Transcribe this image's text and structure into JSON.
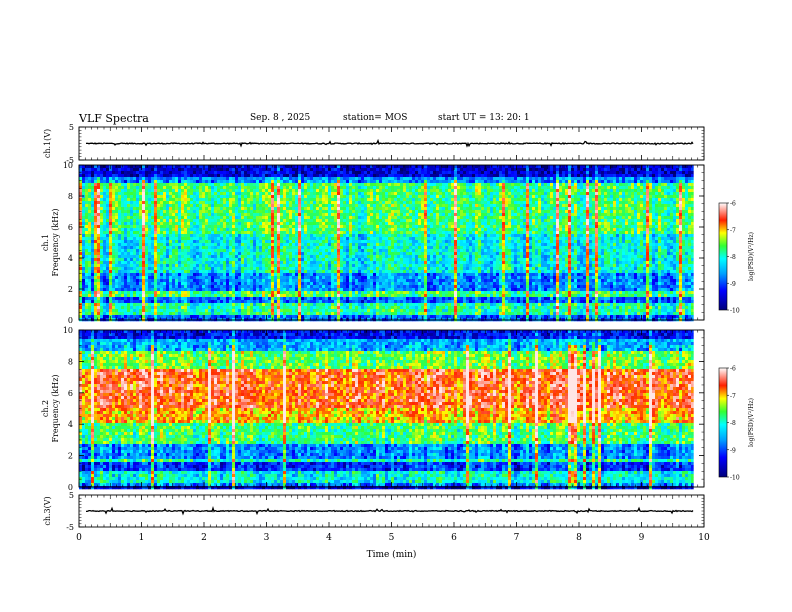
{
  "header": {
    "title": "VLF Spectra",
    "date": "Sep. 8  , 2025",
    "station": "station= MOS",
    "start_ut": "start  UT  =    13: 20: 1"
  },
  "colors": {
    "background": "#ffffff",
    "axis": "#000000"
  },
  "chart_data": [
    {
      "type": "line",
      "name": "ch1-waveform",
      "ylabel": "ch.1(V)",
      "ylim": [
        -5,
        5
      ],
      "yticks": [
        "5",
        "-5"
      ],
      "xlim": [
        0,
        10
      ],
      "baseline": 0
    },
    {
      "type": "heatmap",
      "name": "ch1-spectrogram",
      "ylabel": [
        "ch.1",
        "Frequency (kHz)"
      ],
      "ylim": [
        0,
        10
      ],
      "yticks": [
        "0",
        "2",
        "4",
        "6",
        "8",
        "10"
      ],
      "xlim": [
        0,
        9.83
      ],
      "colorbar": {
        "label": "log(PSD)(V²/Hz)",
        "range": [
          -10,
          -6
        ],
        "ticks": [
          "-6",
          "-7",
          "-8",
          "-9",
          "-10"
        ]
      },
      "bands": [
        {
          "f0": 0.0,
          "f1": 0.3,
          "level": 0.25
        },
        {
          "f0": 0.3,
          "f1": 1.1,
          "level": 0.5
        },
        {
          "f0": 1.1,
          "f1": 1.5,
          "level": 0.25
        },
        {
          "f0": 1.5,
          "f1": 1.8,
          "level": 0.55
        },
        {
          "f0": 1.8,
          "f1": 3.0,
          "level": 0.3
        },
        {
          "f0": 3.0,
          "f1": 5.5,
          "level": 0.45
        },
        {
          "f0": 5.5,
          "f1": 8.8,
          "level": 0.55
        },
        {
          "f0": 8.8,
          "f1": 9.2,
          "level": 0.3
        },
        {
          "f0": 9.2,
          "f1": 10.0,
          "level": 0.1
        }
      ]
    },
    {
      "type": "heatmap",
      "name": "ch2-spectrogram",
      "ylabel": [
        "ch.2",
        "Frequency (kHz)"
      ],
      "ylim": [
        0,
        10
      ],
      "yticks": [
        "0",
        "2",
        "4",
        "6",
        "8",
        "10"
      ],
      "xlim": [
        0,
        9.83
      ],
      "colorbar": {
        "label": "log(PSD)(V²/Hz)",
        "range": [
          -10,
          -6
        ],
        "ticks": [
          "-6",
          "-7",
          "-8",
          "-9",
          "-10"
        ]
      },
      "bands": [
        {
          "f0": 0.0,
          "f1": 0.3,
          "level": 0.3
        },
        {
          "f0": 0.3,
          "f1": 1.1,
          "level": 0.45
        },
        {
          "f0": 1.1,
          "f1": 1.5,
          "level": 0.2
        },
        {
          "f0": 1.5,
          "f1": 1.8,
          "level": 0.5
        },
        {
          "f0": 1.8,
          "f1": 2.8,
          "level": 0.3
        },
        {
          "f0": 2.8,
          "f1": 4.0,
          "level": 0.55
        },
        {
          "f0": 4.0,
          "f1": 5.0,
          "level": 0.75
        },
        {
          "f0": 5.0,
          "f1": 7.5,
          "level": 0.85
        },
        {
          "f0": 7.5,
          "f1": 8.6,
          "level": 0.6
        },
        {
          "f0": 8.6,
          "f1": 9.4,
          "level": 0.35
        },
        {
          "f0": 9.4,
          "f1": 10.0,
          "level": 0.15
        }
      ]
    },
    {
      "type": "line",
      "name": "ch3-waveform",
      "ylabel": "ch.3(V)",
      "ylim": [
        -5,
        5
      ],
      "yticks": [
        "5",
        "-5"
      ],
      "xlim": [
        0,
        10
      ],
      "baseline": 0
    }
  ],
  "xaxis": {
    "label": "Time  (min)",
    "range": [
      0,
      10
    ],
    "ticks": [
      "0",
      "1",
      "2",
      "3",
      "4",
      "5",
      "6",
      "7",
      "8",
      "9",
      "10"
    ]
  }
}
